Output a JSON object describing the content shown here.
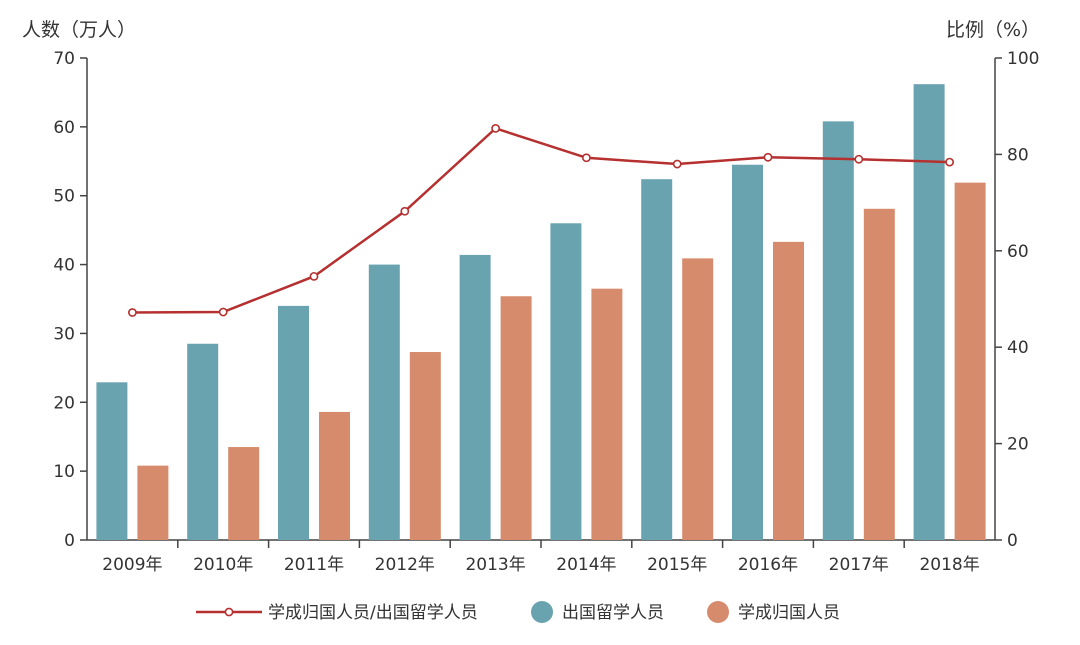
{
  "colors": {
    "outbound": "#6aa3b0",
    "returnee": "#d68b6c",
    "ratio": "#b5302f",
    "axis": "#444444",
    "text": "#333333"
  },
  "chart_data": {
    "type": "bar",
    "categories": [
      "2009年",
      "2010年",
      "2011年",
      "2012年",
      "2013年",
      "2014年",
      "2015年",
      "2016年",
      "2017年",
      "2018年"
    ],
    "y_left_label": "人数（万人）",
    "y_right_label": "比例（%）",
    "y_left_lim": [
      0,
      70
    ],
    "y_left_ticks": [
      "0",
      "10",
      "20",
      "30",
      "40",
      "50",
      "60",
      "70"
    ],
    "y_right_lim": [
      0,
      100
    ],
    "y_right_ticks": [
      "0",
      "20",
      "40",
      "60",
      "80",
      "100"
    ],
    "grid": false,
    "legend_position": "bottom",
    "series": [
      {
        "name": "出国留学人员",
        "kind": "bar",
        "axis": "left",
        "values": [
          22.9,
          28.5,
          34.0,
          40.0,
          41.4,
          46.0,
          52.4,
          54.5,
          60.8,
          66.2
        ]
      },
      {
        "name": "学成归国人员",
        "kind": "bar",
        "axis": "left",
        "values": [
          10.8,
          13.5,
          18.6,
          27.3,
          35.4,
          36.5,
          40.9,
          43.3,
          48.1,
          51.9
        ]
      },
      {
        "name": "学成归国人员/出国留学人员",
        "kind": "line",
        "axis": "right",
        "values": [
          47.2,
          47.3,
          54.7,
          68.2,
          85.4,
          79.3,
          78.0,
          79.4,
          79.0,
          78.4
        ]
      }
    ]
  }
}
